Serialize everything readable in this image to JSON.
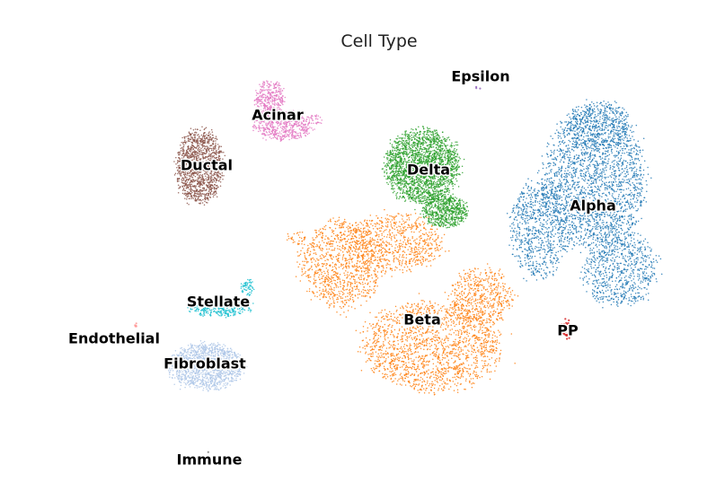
{
  "chart_data": {
    "type": "scatter",
    "title": "Cell Type",
    "xlabel": "",
    "ylabel": "",
    "axes_visible": false,
    "grid": false,
    "legend": "on data",
    "series": [
      {
        "name": "Alpha",
        "color": "#1f77b4",
        "approx_cells": 12000,
        "center": [
          0.82,
          0.42
        ],
        "spread": [
          0.17,
          0.44
        ]
      },
      {
        "name": "Beta",
        "color": "#ff7f0e",
        "approx_cells": 14000,
        "center": [
          0.56,
          0.66
        ],
        "spread": [
          0.35,
          0.4
        ]
      },
      {
        "name": "Delta",
        "color": "#2ca02c",
        "approx_cells": 2800,
        "center": [
          0.6,
          0.36
        ],
        "spread": [
          0.12,
          0.27
        ]
      },
      {
        "name": "Acinar",
        "color": "#e377c2",
        "approx_cells": 900,
        "center": [
          0.39,
          0.24
        ],
        "spread": [
          0.11,
          0.14
        ]
      },
      {
        "name": "Ductal",
        "color": "#8c564b",
        "approx_cells": 1300,
        "center": [
          0.28,
          0.34
        ],
        "spread": [
          0.07,
          0.17
        ]
      },
      {
        "name": "Stellate",
        "color": "#17becf",
        "approx_cells": 450,
        "center": [
          0.3,
          0.64
        ],
        "spread": [
          0.11,
          0.06
        ]
      },
      {
        "name": "Fibroblast",
        "color": "#aec7e8",
        "approx_cells": 1300,
        "center": [
          0.3,
          0.76
        ],
        "spread": [
          0.11,
          0.09
        ]
      },
      {
        "name": "PP",
        "color": "#d62728",
        "approx_cells": 50,
        "center": [
          0.79,
          0.68
        ],
        "spread": [
          0.02,
          0.04
        ]
      },
      {
        "name": "Endothelial",
        "color": "#ff9896",
        "approx_cells": 5,
        "center": [
          0.19,
          0.67
        ],
        "spread": [
          0.01,
          0.01
        ]
      },
      {
        "name": "Epsilon",
        "color": "#9467bd",
        "approx_cells": 3,
        "center": [
          0.67,
          0.18
        ],
        "spread": [
          0.005,
          0.005
        ]
      },
      {
        "name": "Immune",
        "color": "#7f7f7f",
        "approx_cells": 1,
        "center": [
          0.29,
          0.94
        ],
        "spread": [
          0.003,
          0.003
        ]
      }
    ]
  }
}
